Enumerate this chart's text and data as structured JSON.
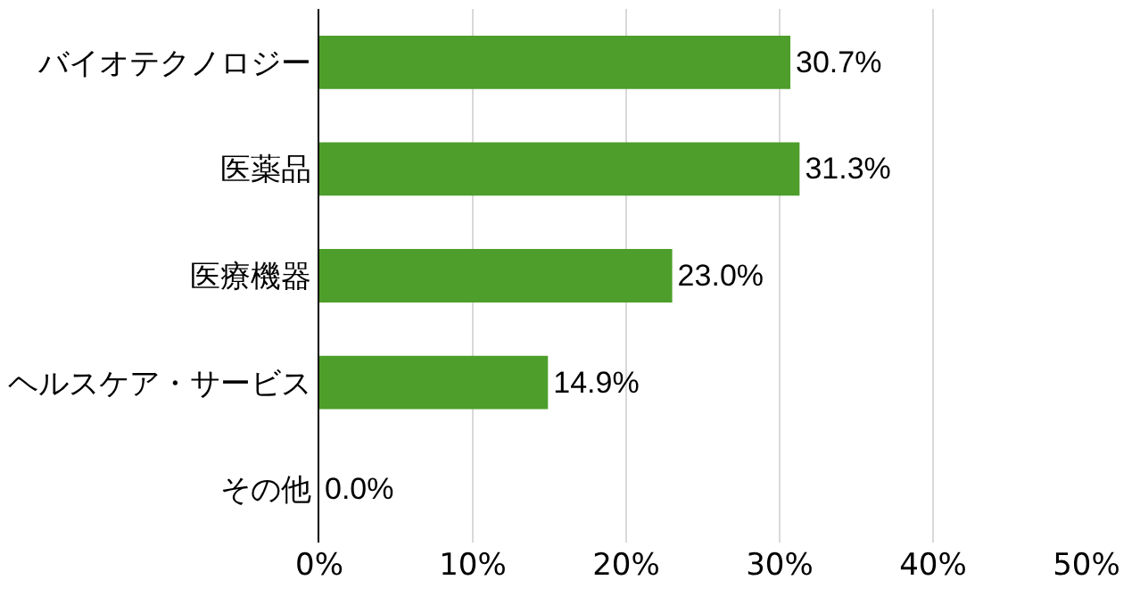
{
  "chart_data": {
    "type": "bar",
    "orientation": "horizontal",
    "categories": [
      "バイオテクノロジー",
      "医薬品",
      "医療機器",
      "ヘルスケア・サービス",
      "その他"
    ],
    "values": [
      30.7,
      31.3,
      23.0,
      14.9,
      0.0
    ],
    "value_labels": [
      "30.7%",
      "31.3%",
      "23.0%",
      "14.9%",
      "0.0%"
    ],
    "color": "#4d9e2a",
    "xlim": [
      0,
      50
    ],
    "xticks": [
      {
        "value": 0,
        "label": "0%"
      },
      {
        "value": 10,
        "label": "10%"
      },
      {
        "value": 20,
        "label": "20%"
      },
      {
        "value": 30,
        "label": "30%"
      },
      {
        "value": 40,
        "label": "40%"
      },
      {
        "value": 50,
        "label": "50%"
      }
    ],
    "grid": "x"
  }
}
